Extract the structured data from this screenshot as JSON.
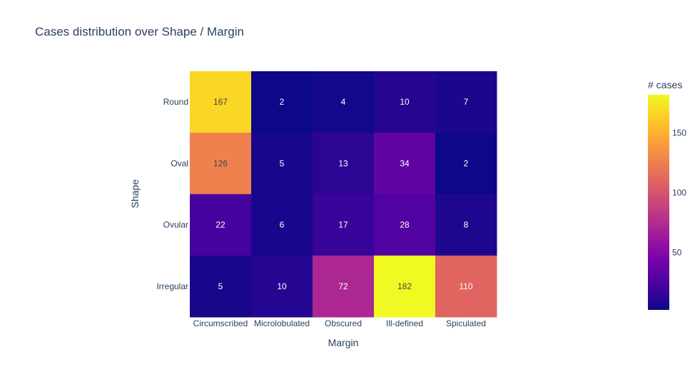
{
  "chart_data": {
    "type": "heatmap",
    "title": "Cases distribution over Shape / Margin",
    "xlabel": "Margin",
    "ylabel": "Shape",
    "x_categories": [
      "Circumscribed",
      "Microlobulated",
      "Obscured",
      "Ill-defined",
      "Spiculated"
    ],
    "y_categories": [
      "Round",
      "Oval",
      "Ovular",
      "Irregular"
    ],
    "values": [
      [
        167,
        2,
        4,
        10,
        7
      ],
      [
        126,
        5,
        13,
        34,
        2
      ],
      [
        22,
        6,
        17,
        28,
        8
      ],
      [
        5,
        10,
        72,
        182,
        110
      ]
    ],
    "colorbar": {
      "title": "# cases",
      "ticks": [
        50,
        100,
        150
      ],
      "zmin": 2,
      "zmax": 182,
      "colorscale": [
        "#0d0887",
        "#46039f",
        "#7201a8",
        "#9c179e",
        "#bd3786",
        "#d8576b",
        "#ed7953",
        "#fb9f3a",
        "#fdca26",
        "#f0f921"
      ]
    }
  }
}
